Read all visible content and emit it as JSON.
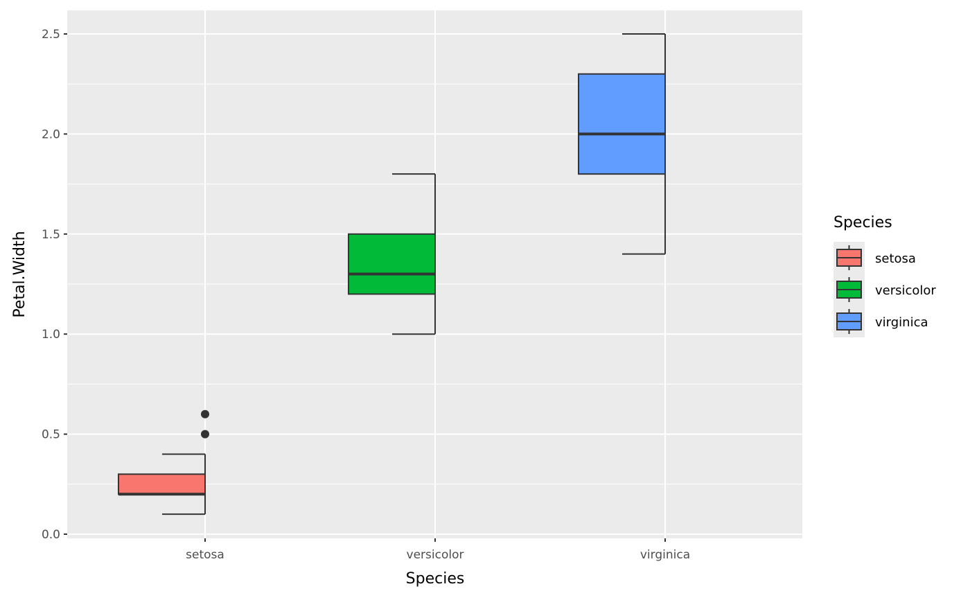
{
  "chart_data": {
    "type": "boxplot",
    "xlabel": "Species",
    "ylabel": "Petal.Width",
    "ylim": [
      0,
      2.5
    ],
    "yticks": [
      "0.0",
      "0.5",
      "1.0",
      "1.5",
      "2.0",
      "2.5"
    ],
    "ytick_values": [
      0,
      0.5,
      1.0,
      1.5,
      2.0,
      2.5
    ],
    "categories": [
      "setosa",
      "versicolor",
      "virginica"
    ],
    "boxes": [
      {
        "name": "setosa",
        "lower": 0.1,
        "q1": 0.2,
        "median": 0.2,
        "q3": 0.3,
        "upper": 0.4,
        "outliers": [
          0.5,
          0.6
        ],
        "color": "#F8766D"
      },
      {
        "name": "versicolor",
        "lower": 1.0,
        "q1": 1.2,
        "median": 1.3,
        "q3": 1.5,
        "upper": 1.8,
        "outliers": [],
        "color": "#00BA38"
      },
      {
        "name": "virginica",
        "lower": 1.4,
        "q1": 1.8,
        "median": 2.0,
        "q3": 2.3,
        "upper": 2.5,
        "outliers": [],
        "color": "#619CFF"
      }
    ],
    "legend": {
      "title": "Species",
      "position": "right",
      "entries": [
        "setosa",
        "versicolor",
        "virginica"
      ]
    },
    "grid": true
  }
}
